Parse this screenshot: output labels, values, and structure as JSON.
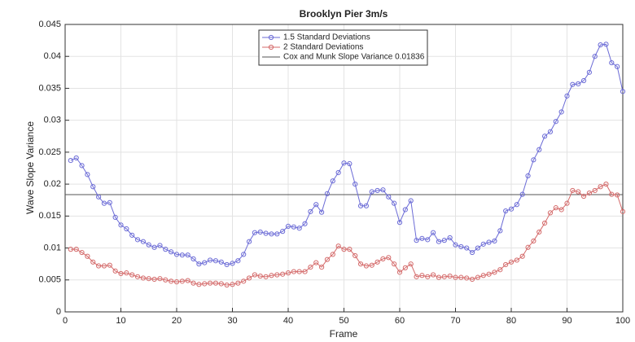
{
  "chart_data": {
    "type": "line",
    "title": "Brooklyn Pier 3m/s",
    "x_label": "Frame",
    "y_label": "Wave Slope Variance",
    "x": [
      1,
      2,
      3,
      4,
      5,
      6,
      7,
      8,
      9,
      10,
      11,
      12,
      13,
      14,
      15,
      16,
      17,
      18,
      19,
      20,
      21,
      22,
      23,
      24,
      25,
      26,
      27,
      28,
      29,
      30,
      31,
      32,
      33,
      34,
      35,
      36,
      37,
      38,
      39,
      40,
      41,
      42,
      43,
      44,
      45,
      46,
      47,
      48,
      49,
      50,
      51,
      52,
      53,
      54,
      55,
      56,
      57,
      58,
      59,
      60,
      61,
      62,
      63,
      64,
      65,
      66,
      67,
      68,
      69,
      70,
      71,
      72,
      73,
      74,
      75,
      76,
      77,
      78,
      79,
      80,
      81,
      82,
      83,
      84,
      85,
      86,
      87,
      88,
      89,
      90,
      91,
      92,
      93,
      94,
      95,
      96,
      97,
      98,
      99,
      100
    ],
    "series": [
      {
        "name": "1.5 Standard Deviations",
        "color": "#6b6bd6",
        "values": [
          0.0237,
          0.0241,
          0.0229,
          0.0215,
          0.0196,
          0.018,
          0.017,
          0.0171,
          0.0148,
          0.0136,
          0.013,
          0.012,
          0.0113,
          0.011,
          0.0105,
          0.0101,
          0.0104,
          0.0098,
          0.0094,
          0.009,
          0.0089,
          0.0089,
          0.0083,
          0.0075,
          0.0077,
          0.0081,
          0.008,
          0.0078,
          0.0074,
          0.0076,
          0.008,
          0.009,
          0.011,
          0.0124,
          0.0125,
          0.0123,
          0.0122,
          0.0122,
          0.0126,
          0.0134,
          0.0133,
          0.0131,
          0.0138,
          0.0157,
          0.0168,
          0.0156,
          0.0185,
          0.0205,
          0.0218,
          0.0233,
          0.0232,
          0.02,
          0.0166,
          0.0166,
          0.0188,
          0.019,
          0.0191,
          0.018,
          0.017,
          0.014,
          0.016,
          0.0174,
          0.0112,
          0.0115,
          0.0113,
          0.0124,
          0.011,
          0.0112,
          0.0116,
          0.0105,
          0.0102,
          0.01,
          0.0093,
          0.01,
          0.0106,
          0.0109,
          0.0111,
          0.0127,
          0.0158,
          0.0161,
          0.0168,
          0.0184,
          0.0213,
          0.0238,
          0.0254,
          0.0275,
          0.0282,
          0.0298,
          0.0313,
          0.0338,
          0.0356,
          0.0357,
          0.0362,
          0.0375,
          0.04,
          0.0418,
          0.0419,
          0.039,
          0.0384,
          0.0345
        ]
      },
      {
        "name": "2 Standard Deviations",
        "color": "#d46a6a",
        "values": [
          0.0098,
          0.0098,
          0.0093,
          0.0087,
          0.0078,
          0.0072,
          0.0072,
          0.0073,
          0.0064,
          0.006,
          0.0061,
          0.0058,
          0.0055,
          0.0053,
          0.0052,
          0.0051,
          0.0052,
          0.005,
          0.0048,
          0.0047,
          0.0048,
          0.0049,
          0.0045,
          0.0043,
          0.0044,
          0.0045,
          0.0045,
          0.0044,
          0.0042,
          0.0043,
          0.0045,
          0.0048,
          0.0053,
          0.0058,
          0.0056,
          0.0055,
          0.0057,
          0.0058,
          0.0059,
          0.0061,
          0.0063,
          0.0063,
          0.0063,
          0.007,
          0.0077,
          0.007,
          0.0082,
          0.009,
          0.0103,
          0.0098,
          0.0098,
          0.0088,
          0.0075,
          0.0072,
          0.0073,
          0.0078,
          0.0083,
          0.0085,
          0.0075,
          0.0062,
          0.0069,
          0.0075,
          0.0055,
          0.0057,
          0.0055,
          0.0058,
          0.0054,
          0.0055,
          0.0056,
          0.0054,
          0.0054,
          0.0053,
          0.0051,
          0.0054,
          0.0057,
          0.0059,
          0.0062,
          0.0066,
          0.0074,
          0.0078,
          0.0081,
          0.0087,
          0.0101,
          0.0111,
          0.0125,
          0.0139,
          0.0155,
          0.0163,
          0.016,
          0.017,
          0.019,
          0.0188,
          0.0181,
          0.0186,
          0.019,
          0.0196,
          0.02,
          0.0184,
          0.0183,
          0.0157
        ]
      }
    ],
    "reference_line": {
      "name": "Cox and Munk Slope Variance 0.01836",
      "value": 0.01836,
      "color": "#555555"
    },
    "xlim": [
      0,
      100
    ],
    "xticks": [
      0,
      10,
      20,
      30,
      40,
      50,
      60,
      70,
      80,
      90,
      100
    ],
    "ylim": [
      0,
      0.045
    ],
    "yticks": [
      0,
      0.005,
      0.01,
      0.015,
      0.02,
      0.025,
      0.03,
      0.035,
      0.04,
      0.045
    ],
    "grid": true
  }
}
